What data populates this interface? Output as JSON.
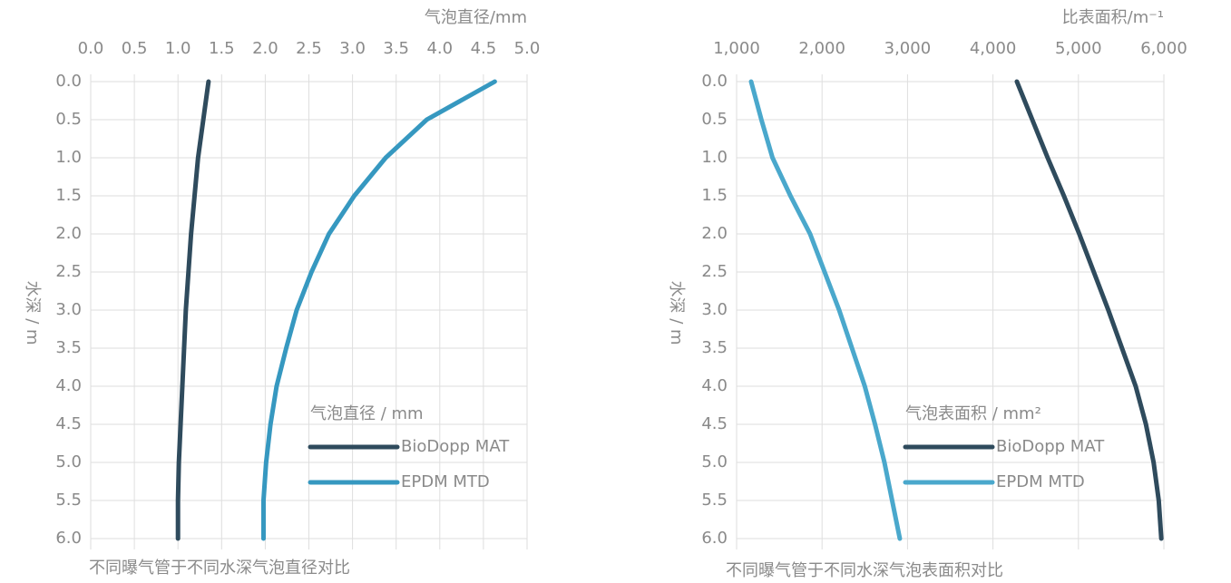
{
  "chart_data": [
    {
      "type": "line",
      "x_label": "气泡直径/mm",
      "y_label": "水深 / m",
      "legend_title": "气泡直径 / mm",
      "caption": "不同曝气管于不同水深气泡直径对比",
      "y": [
        0,
        0.5,
        1,
        1.5,
        2,
        2.5,
        3,
        3.5,
        4,
        4.5,
        5,
        5.5,
        6
      ],
      "series": [
        {
          "name": "BioDopp MAT",
          "color": "#2f4b5d",
          "values": [
            1.35,
            1.29,
            1.23,
            1.19,
            1.15,
            1.12,
            1.09,
            1.07,
            1.05,
            1.03,
            1.01,
            1.0,
            1.0
          ]
        },
        {
          "name": "EPDM MTD",
          "color": "#3698c0",
          "values": [
            4.63,
            3.85,
            3.38,
            3.02,
            2.73,
            2.53,
            2.36,
            2.24,
            2.13,
            2.06,
            2.01,
            1.98,
            1.98
          ]
        }
      ],
      "xlim": [
        0,
        5
      ],
      "xticks": [
        {
          "value": 0,
          "label": "0.0"
        },
        0.5,
        {
          "value": 1,
          "label": "1.0"
        },
        1.5,
        {
          "value": 2,
          "label": "2.0"
        },
        2.5,
        {
          "value": 3,
          "label": "3.0"
        },
        3.5,
        {
          "value": 4,
          "label": "4.0"
        },
        4.5,
        {
          "value": 5,
          "label": "5.0"
        }
      ],
      "ylim": [
        0,
        6
      ],
      "yticks": [
        {
          "value": 0,
          "label": "0.0"
        },
        0.5,
        {
          "value": 1,
          "label": "1.0"
        },
        1.5,
        {
          "value": 2,
          "label": "2.0"
        },
        2.5,
        {
          "value": 3,
          "label": "3.0"
        },
        3.5,
        {
          "value": 4,
          "label": "4.0"
        },
        4.5,
        {
          "value": 5,
          "label": "5.0"
        },
        5.5,
        {
          "value": 6,
          "label": "6.0"
        }
      ],
      "grid": true
    },
    {
      "type": "line",
      "x_label": "比表面积/m⁻¹",
      "y_label": "水深 / m",
      "legend_title": "气泡表面积 / mm²",
      "caption": "不同曝气管于不同水深气泡表面积对比",
      "y": [
        0,
        0.5,
        1,
        1.5,
        2,
        2.5,
        3,
        3.5,
        4,
        4.5,
        5,
        5.5,
        6
      ],
      "series": [
        {
          "name": "BioDopp MAT",
          "color": "#2f4b5d",
          "values": [
            4280,
            4460,
            4640,
            4830,
            5010,
            5180,
            5350,
            5510,
            5670,
            5790,
            5880,
            5940,
            5970
          ]
        },
        {
          "name": "EPDM MTD",
          "color": "#4aa8cc",
          "values": [
            1170,
            1290,
            1420,
            1630,
            1860,
            2030,
            2200,
            2350,
            2500,
            2620,
            2730,
            2820,
            2910
          ]
        }
      ],
      "xlim": [
        1000,
        6000
      ],
      "xticks": [
        {
          "value": 1000,
          "label": "1,000"
        },
        {
          "value": 2000,
          "label": "2,000"
        },
        {
          "value": 3000,
          "label": "3,000"
        },
        {
          "value": 4000,
          "label": "4,000"
        },
        {
          "value": 5000,
          "label": "5,000"
        },
        {
          "value": 6000,
          "label": "6,000"
        }
      ],
      "ylim": [
        0,
        6
      ],
      "yticks": [
        {
          "value": 0,
          "label": "0.0"
        },
        0.5,
        {
          "value": 1,
          "label": "1.0"
        },
        1.5,
        {
          "value": 2,
          "label": "2.0"
        },
        2.5,
        {
          "value": 3,
          "label": "3.0"
        },
        3.5,
        {
          "value": 4,
          "label": "4.0"
        },
        4.5,
        {
          "value": 5,
          "label": "5.0"
        },
        5.5,
        {
          "value": 6,
          "label": "6.0"
        }
      ],
      "grid": true
    }
  ]
}
